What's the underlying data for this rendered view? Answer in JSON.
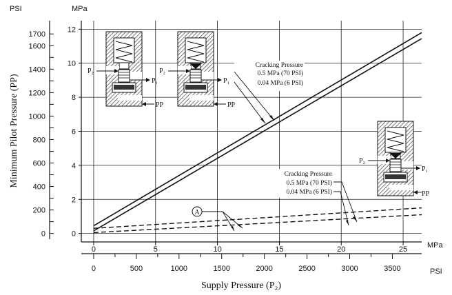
{
  "chart_data": {
    "type": "line",
    "xlabel": "Supply Pressure (P₂)",
    "ylabel": "Minimum Pilot Pressure (PP)",
    "x_unit_primary": "MPa",
    "x_unit_secondary": "PSI",
    "y_unit_left": "PSI",
    "y_unit_right": "MPa",
    "xlim_mpa": [
      -1,
      26.5
    ],
    "ylim_mpa": [
      -0.5,
      12.5
    ],
    "x_ticks_mpa": [
      "0",
      "5",
      "10",
      "15",
      "20",
      "25"
    ],
    "x_ticks_psi": [
      "0",
      "500",
      "1000",
      "1500",
      "2000",
      "2500",
      "3000",
      "3500"
    ],
    "y_ticks_mpa": [
      "0",
      "2",
      "4",
      "6",
      "8",
      "10",
      "12"
    ],
    "y_ticks_psi": [
      "0",
      "200",
      "400",
      "600",
      "800",
      "1000",
      "1200",
      "1400",
      "1600",
      "1700"
    ],
    "grid": true,
    "series": [
      {
        "name": "Cracking Pressure 0.5 MPa (70 PSI)",
        "style": "solid",
        "x": [
          0,
          26.5
        ],
        "y": [
          0.45,
          11.8
        ]
      },
      {
        "name": "Cracking Pressure 0.04 MPa (6 PSI)",
        "style": "solid",
        "x": [
          0,
          26.5
        ],
        "y": [
          0.15,
          11.45
        ]
      },
      {
        "name": "Cracking Pressure 0.5 MPa (70 PSI)",
        "style": "dashed",
        "x": [
          0,
          26.5
        ],
        "y": [
          0.3,
          1.5
        ]
      },
      {
        "name": "Cracking Pressure 0.04 MPa (6 PSI)",
        "style": "dashed",
        "x": [
          0,
          26.5
        ],
        "y": [
          0.05,
          1.1
        ]
      }
    ],
    "annotations": {
      "upper": {
        "line1": "Cracking Pressure",
        "line2": "0.5 MPa (70 PSI)",
        "line3": "0.04 MPa (6 PSI)"
      },
      "lower": {
        "line1": "Cracking Pressure",
        "line2": "0.5 MPa (70 PSI)",
        "line3": "0.04 MPa (6 PSI)"
      },
      "marker": "A"
    },
    "diagram_labels": {
      "p2": "P₂",
      "p1": "P₁",
      "pp": "PP"
    }
  }
}
